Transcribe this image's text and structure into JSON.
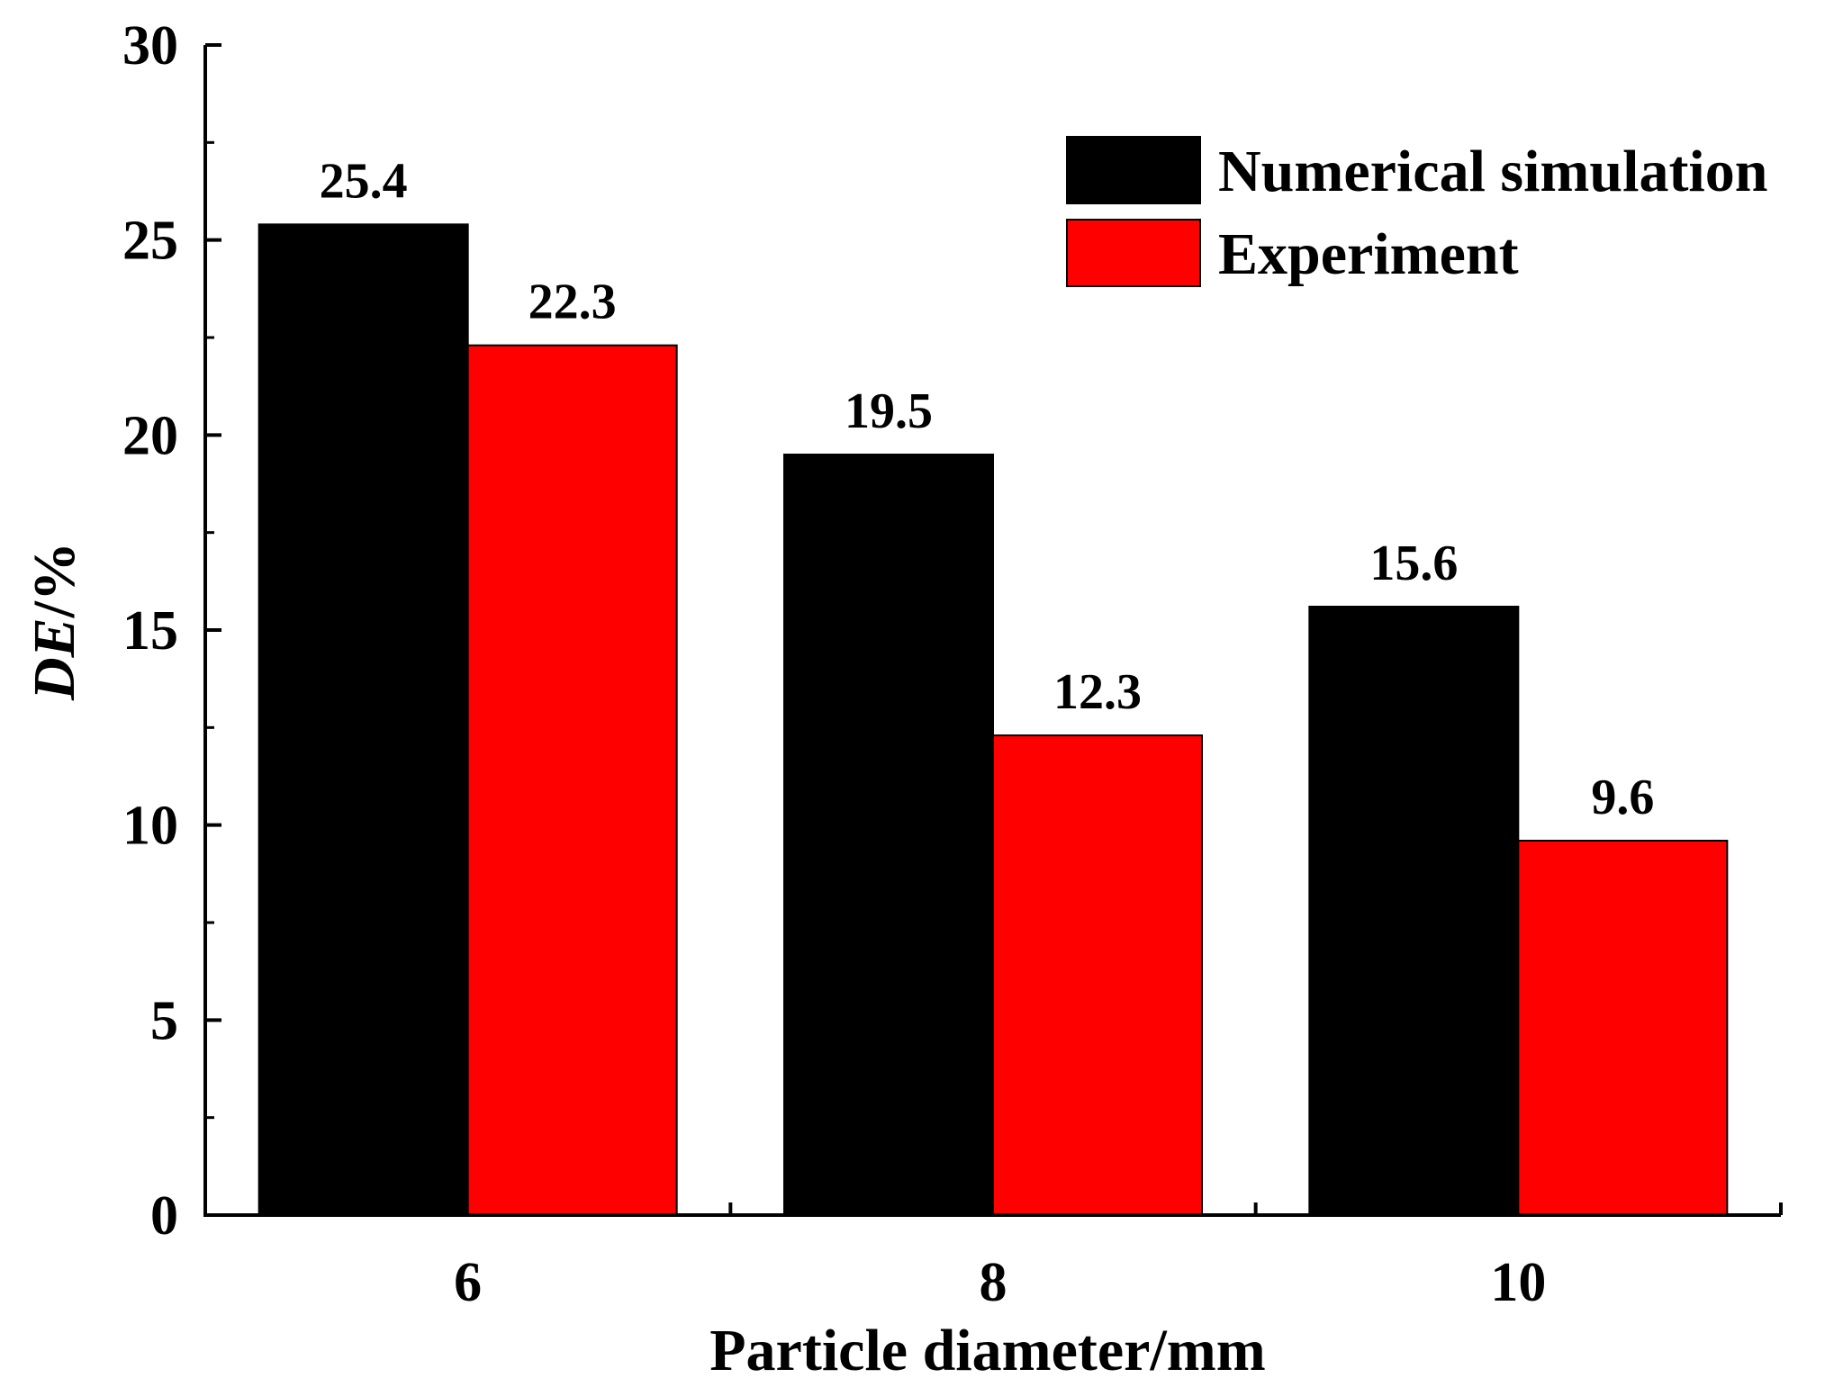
{
  "chart_data": {
    "type": "bar",
    "title": "",
    "xlabel": "Particle diameter/mm",
    "ylabel": {
      "italic_part": "DE",
      "rest": "/%"
    },
    "categories": [
      "6",
      "8",
      "10"
    ],
    "series": [
      {
        "name": "Numerical simulation",
        "color": "#000000",
        "values": [
          25.4,
          19.5,
          15.6
        ],
        "value_labels": [
          "25.4",
          "19.5",
          "15.6"
        ]
      },
      {
        "name": "Experiment",
        "color": "#ff0000",
        "values": [
          22.3,
          12.3,
          9.6
        ],
        "value_labels": [
          "22.3",
          "12.3",
          "9.6"
        ]
      }
    ],
    "ylim": [
      0,
      30
    ],
    "yticks": [
      0,
      5,
      10,
      15,
      20,
      25,
      30
    ],
    "ytick_labels": [
      "0",
      "5",
      "10",
      "15",
      "20",
      "25",
      "30"
    ],
    "grid": false,
    "legend_position": "top-right"
  }
}
